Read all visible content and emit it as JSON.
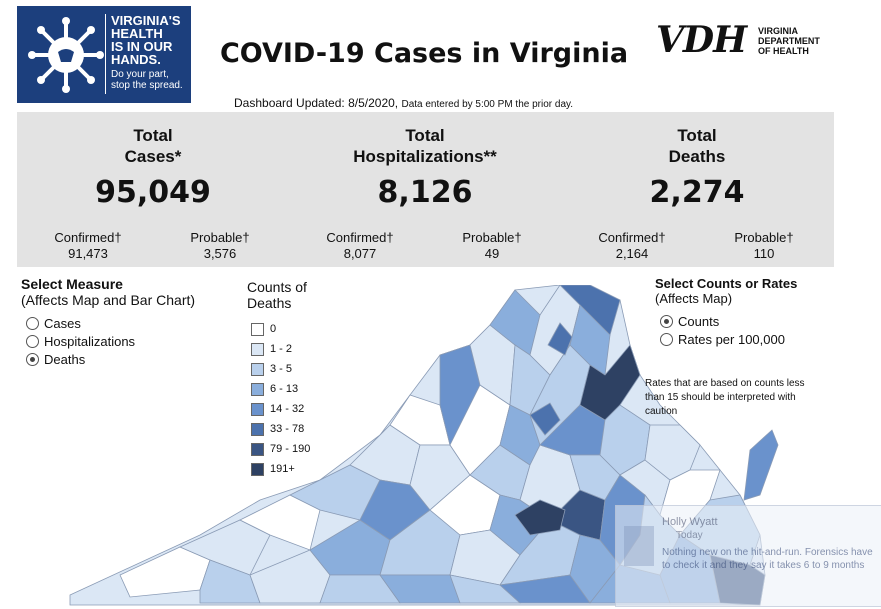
{
  "logo": {
    "slogan_main": "VIRGINIA'S\nHEALTH\nIS IN OUR\nHANDS.",
    "slogan_sub": "Do your part,\nstop the spread."
  },
  "title": "COVID-19 Cases in Virginia",
  "vdh": {
    "mark": "VDH",
    "org": "VIRGINIA\nDEPARTMENT\nOF HEALTH"
  },
  "updated": {
    "main": "Dashboard Updated: 8/5/2020,",
    "note": "Data entered by 5:00 PM the prior day."
  },
  "stats": [
    {
      "label": "Total\nCases*",
      "value": "95,049",
      "confirmed_label": "Confirmed†",
      "confirmed": "91,473",
      "probable_label": "Probable†",
      "probable": "3,576"
    },
    {
      "label": "Total\nHospitalizations**",
      "value": "8,126",
      "confirmed_label": "Confirmed†",
      "confirmed": "8,077",
      "probable_label": "Probable†",
      "probable": "49"
    },
    {
      "label": "Total\nDeaths",
      "value": "2,274",
      "confirmed_label": "Confirmed†",
      "confirmed": "2,164",
      "probable_label": "Probable†",
      "probable": "110"
    }
  ],
  "measure": {
    "heading": "Select Measure",
    "subheading": "(Affects Map and Bar Chart)",
    "options": [
      "Cases",
      "Hospitalizations",
      "Deaths"
    ],
    "selected": "Deaths"
  },
  "legend": {
    "heading": "Counts of\nDeaths",
    "items": [
      {
        "label": "0",
        "color": "#ffffff"
      },
      {
        "label": "1 - 2",
        "color": "#dbe7f5"
      },
      {
        "label": "3 - 5",
        "color": "#b9d0ec"
      },
      {
        "label": "6 - 13",
        "color": "#8aaedc"
      },
      {
        "label": "14 - 32",
        "color": "#6a92cc"
      },
      {
        "label": "33 - 78",
        "color": "#4c72ad"
      },
      {
        "label": "79 - 190",
        "color": "#3a5583"
      },
      {
        "label": "191+",
        "color": "#2e4163"
      }
    ]
  },
  "counts_rates": {
    "heading": "Select Counts or Rates",
    "subheading": "(Affects Map)",
    "options": [
      "Counts",
      "Rates per 100,000"
    ],
    "selected": "Counts"
  },
  "caution": "Rates that are based on counts less than 15 should be interpreted with caution",
  "popup": {
    "name": "Holly Wyatt",
    "day": "Today",
    "message": "Nothing new on the hit-and-run. Forensics have",
    "message2": "to check it and they say it takes 6 to 9 months"
  }
}
